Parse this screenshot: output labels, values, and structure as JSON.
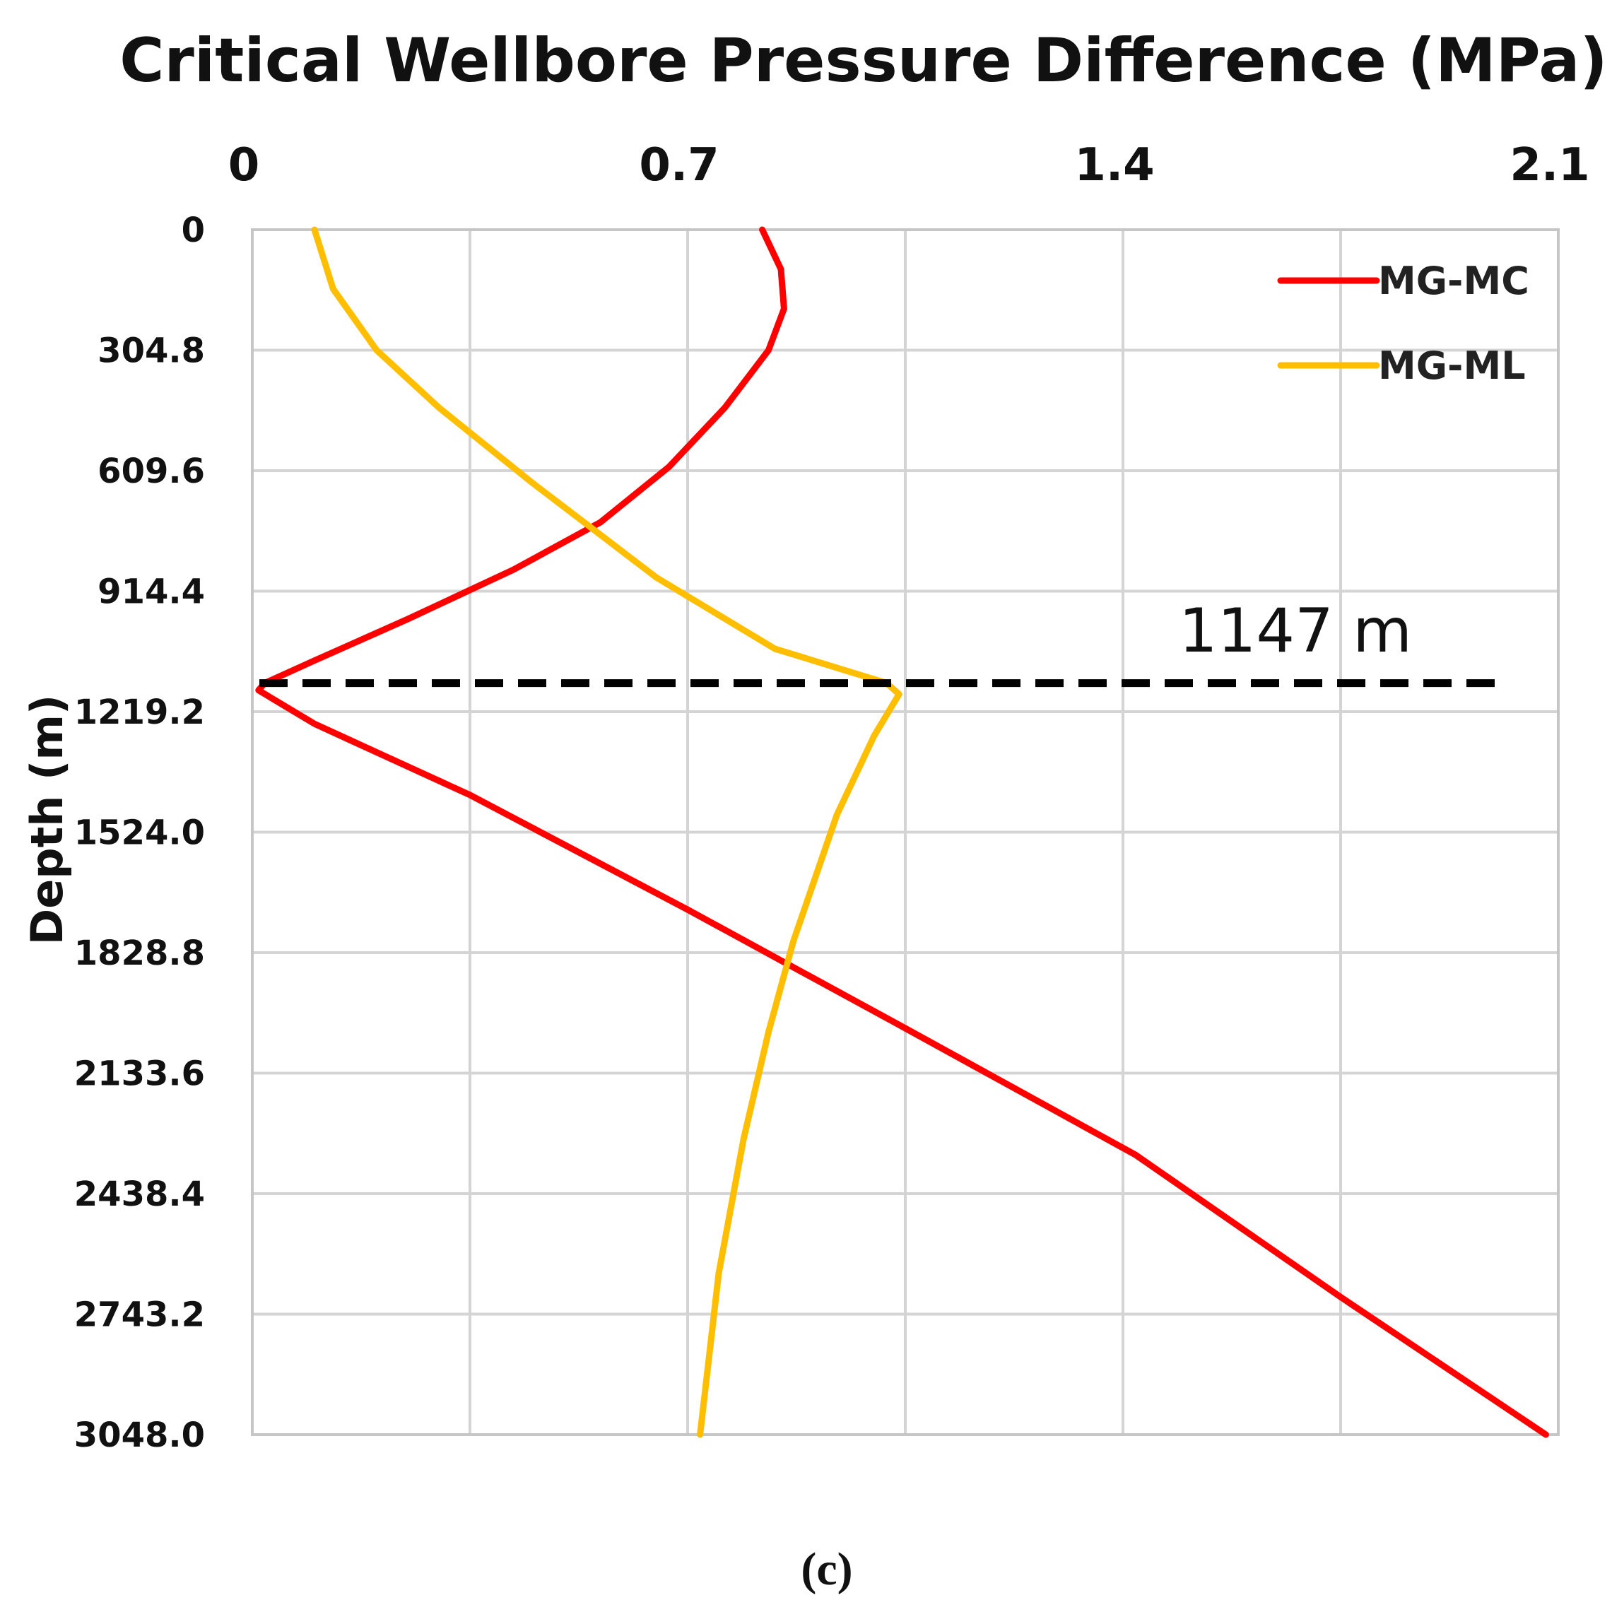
{
  "chart_data": {
    "type": "line",
    "title": "Critical Wellbore Pressure Difference (MPa)",
    "xlabel": "Critical Wellbore Pressure Difference (MPa)",
    "ylabel": "Depth (m)",
    "x_axis_position": "top",
    "y_axis_inverted": true,
    "xlim": [
      0,
      2.1
    ],
    "ylim": [
      0,
      3048.0
    ],
    "x_ticks": [
      "0",
      "0.7",
      "1.4",
      "2.1"
    ],
    "x_tick_values": [
      0,
      0.7,
      1.4,
      2.1
    ],
    "x_gridlines": [
      0,
      0.35,
      0.7,
      1.05,
      1.4,
      1.75,
      2.1
    ],
    "y_ticks": [
      "0",
      "304.8",
      "609.6",
      "914.4",
      "1219.2",
      "1524.0",
      "1828.8",
      "2133.6",
      "2438.4",
      "2743.2",
      "3048.0"
    ],
    "y_tick_values": [
      0,
      304.8,
      609.6,
      914.4,
      1219.2,
      1524.0,
      1828.8,
      2133.6,
      2438.4,
      2743.2,
      3048.0
    ],
    "grid": true,
    "legend_position": "top-right",
    "series": [
      {
        "name": "MG-MC",
        "color": "#ff0000",
        "points": [
          {
            "x": 0.82,
            "depth": 0
          },
          {
            "x": 0.85,
            "depth": 100
          },
          {
            "x": 0.855,
            "depth": 200
          },
          {
            "x": 0.83,
            "depth": 305
          },
          {
            "x": 0.76,
            "depth": 450
          },
          {
            "x": 0.67,
            "depth": 600
          },
          {
            "x": 0.56,
            "depth": 740
          },
          {
            "x": 0.42,
            "depth": 860
          },
          {
            "x": 0.25,
            "depth": 985
          },
          {
            "x": 0.1,
            "depth": 1090
          },
          {
            "x": 0.02,
            "depth": 1147
          },
          {
            "x": 0.01,
            "depth": 1165
          },
          {
            "x": 0.1,
            "depth": 1250
          },
          {
            "x": 0.35,
            "depth": 1430
          },
          {
            "x": 0.7,
            "depth": 1720
          },
          {
            "x": 1.05,
            "depth": 2020
          },
          {
            "x": 1.42,
            "depth": 2340
          },
          {
            "x": 1.75,
            "depth": 2700
          },
          {
            "x": 2.08,
            "depth": 3048
          }
        ]
      },
      {
        "name": "MG-ML",
        "color": "#ffbf00",
        "points": [
          {
            "x": 0.1,
            "depth": 0
          },
          {
            "x": 0.13,
            "depth": 150
          },
          {
            "x": 0.2,
            "depth": 305
          },
          {
            "x": 0.3,
            "depth": 450
          },
          {
            "x": 0.45,
            "depth": 640
          },
          {
            "x": 0.65,
            "depth": 880
          },
          {
            "x": 0.84,
            "depth": 1060
          },
          {
            "x": 1.02,
            "depth": 1147
          },
          {
            "x": 1.04,
            "depth": 1175
          },
          {
            "x": 1.0,
            "depth": 1280
          },
          {
            "x": 0.94,
            "depth": 1480
          },
          {
            "x": 0.87,
            "depth": 1800
          },
          {
            "x": 0.83,
            "depth": 2030
          },
          {
            "x": 0.79,
            "depth": 2300
          },
          {
            "x": 0.75,
            "depth": 2640
          },
          {
            "x": 0.72,
            "depth": 3048
          }
        ]
      }
    ],
    "reference_line": {
      "depth": 1147,
      "label": "1147 m",
      "style": "dashed",
      "color": "#000000"
    },
    "caption": "(c)"
  }
}
